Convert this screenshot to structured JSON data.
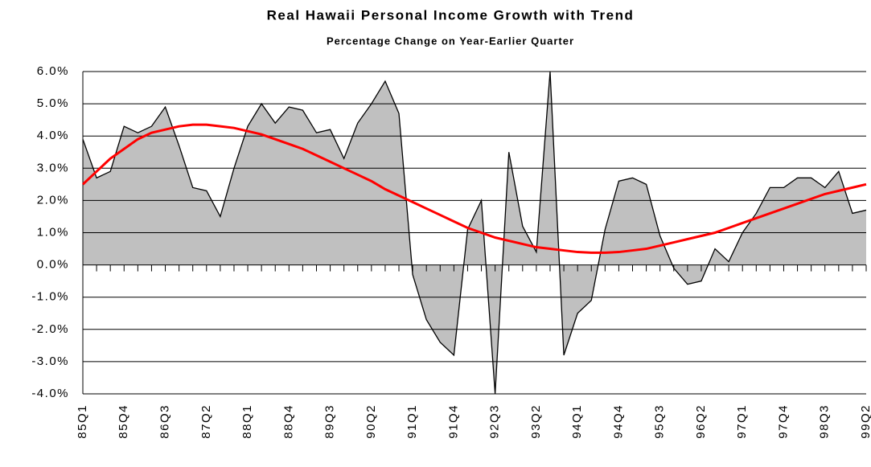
{
  "chart_data": {
    "type": "area",
    "title": "Real Hawaii Personal Income Growth with Trend",
    "subtitle": "Percentage Change on Year-Earlier Quarter",
    "categories": [
      "85Q1",
      null,
      null,
      "85Q4",
      null,
      null,
      "86Q3",
      null,
      null,
      "87Q2",
      null,
      null,
      "88Q1",
      null,
      null,
      "88Q4",
      null,
      null,
      "89Q3",
      null,
      null,
      "90Q2",
      null,
      null,
      "91Q1",
      null,
      null,
      "91Q4",
      null,
      null,
      "92Q3",
      null,
      null,
      "93Q2",
      null,
      null,
      "94Q1",
      null,
      null,
      "94Q4",
      null,
      null,
      "95Q3",
      null,
      null,
      "96Q2",
      null,
      null,
      "97Q1",
      null,
      null,
      "97Q4",
      null,
      null,
      "98Q3",
      null,
      null,
      "99Q2"
    ],
    "series": [
      {
        "type": "area",
        "color": "#c0c0c0",
        "values": [
          3.9,
          2.7,
          2.9,
          4.3,
          4.1,
          4.3,
          4.9,
          3.7,
          2.4,
          2.3,
          1.5,
          3.0,
          4.3,
          5.0,
          4.4,
          4.9,
          4.8,
          4.1,
          4.2,
          3.3,
          4.4,
          5.0,
          5.7,
          4.7,
          -0.3,
          -1.7,
          -2.4,
          -2.8,
          1.1,
          2.0,
          -4.0,
          3.5,
          1.2,
          0.4,
          6.0,
          -2.8,
          -1.5,
          -1.1,
          1.1,
          2.6,
          2.7,
          2.5,
          0.9,
          -0.1,
          -0.6,
          -0.5,
          0.5,
          0.1,
          1.0,
          1.6,
          2.4,
          2.4,
          2.7,
          2.7,
          2.4,
          2.9,
          1.6,
          1.7
        ]
      },
      {
        "type": "line",
        "color": "#ff0000",
        "values": [
          2.5,
          2.9,
          3.3,
          3.6,
          3.9,
          4.1,
          4.2,
          4.3,
          4.35,
          4.35,
          4.3,
          4.25,
          4.15,
          4.05,
          3.9,
          3.75,
          3.6,
          3.4,
          3.2,
          3.0,
          2.8,
          2.6,
          2.35,
          2.15,
          1.95,
          1.75,
          1.55,
          1.35,
          1.15,
          1.0,
          0.85,
          0.75,
          0.65,
          0.55,
          0.5,
          0.45,
          0.4,
          0.38,
          0.38,
          0.4,
          0.45,
          0.5,
          0.6,
          0.7,
          0.8,
          0.9,
          1.0,
          1.15,
          1.3,
          1.45,
          1.6,
          1.75,
          1.9,
          2.05,
          2.2,
          2.3,
          2.4,
          2.5
        ]
      }
    ],
    "ylim": [
      -4,
      6
    ],
    "yticks": [
      {
        "value": -4,
        "label": "-4.0%"
      },
      {
        "value": -3,
        "label": "-3.0%"
      },
      {
        "value": -2,
        "label": "-2.0%"
      },
      {
        "value": -1,
        "label": "-1.0%"
      },
      {
        "value": 0,
        "label": "0.0%"
      },
      {
        "value": 1,
        "label": "1.0%"
      },
      {
        "value": 2,
        "label": "2.0%"
      },
      {
        "value": 3,
        "label": "3.0%"
      },
      {
        "value": 4,
        "label": "4.0%"
      },
      {
        "value": 5,
        "label": "5.0%"
      },
      {
        "value": 6,
        "label": "6.0%"
      }
    ],
    "grid": true
  }
}
